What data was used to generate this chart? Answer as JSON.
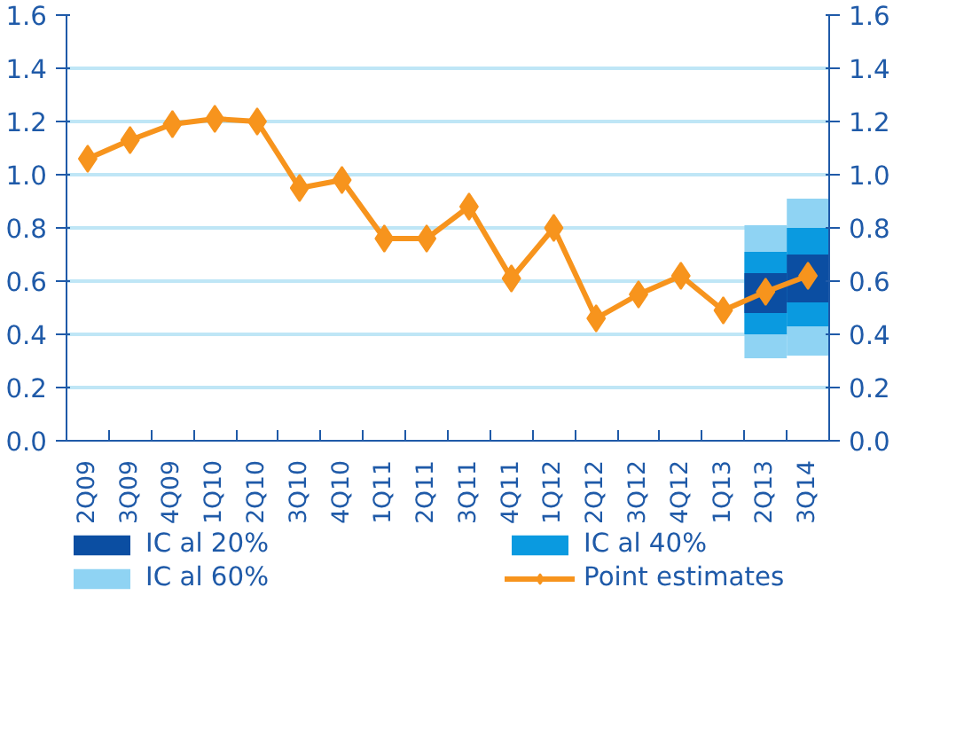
{
  "chart_data": {
    "type": "bar",
    "categories": [
      "2Q09",
      "3Q09",
      "4Q09",
      "1Q10",
      "2Q10",
      "3Q10",
      "4Q10",
      "1Q11",
      "2Q11",
      "3Q11",
      "4Q11",
      "1Q12",
      "2Q12",
      "3Q12",
      "4Q12",
      "1Q13",
      "2Q13",
      "3Q14"
    ],
    "series": [
      {
        "name": "IC al 20%",
        "color": "#0b4ea2",
        "base": [
          null,
          null,
          null,
          null,
          null,
          null,
          null,
          null,
          null,
          null,
          null,
          null,
          null,
          null,
          null,
          null,
          0.48,
          0.52
        ],
        "values": [
          null,
          null,
          null,
          null,
          null,
          null,
          null,
          null,
          null,
          null,
          null,
          null,
          null,
          null,
          null,
          null,
          0.15,
          0.18
        ]
      },
      {
        "name": "IC al 40%",
        "color": "#0a9ae0",
        "base": [
          null,
          null,
          null,
          null,
          null,
          null,
          null,
          null,
          null,
          null,
          null,
          null,
          null,
          null,
          null,
          null,
          0.4,
          0.43
        ],
        "values": [
          null,
          null,
          null,
          null,
          null,
          null,
          null,
          null,
          null,
          null,
          null,
          null,
          null,
          null,
          null,
          null,
          0.31,
          0.37
        ]
      },
      {
        "name": "IC al 60%",
        "color": "#8fd3f3",
        "base": [
          null,
          null,
          null,
          null,
          null,
          null,
          null,
          null,
          null,
          null,
          null,
          null,
          null,
          null,
          null,
          null,
          0.31,
          0.32
        ],
        "values": [
          null,
          null,
          null,
          null,
          null,
          null,
          null,
          null,
          null,
          null,
          null,
          null,
          null,
          null,
          null,
          null,
          0.5,
          0.59
        ]
      },
      {
        "name": "Point estimates",
        "type": "line",
        "color": "#f7941d",
        "marker": "diamond",
        "values": [
          1.06,
          1.13,
          1.19,
          1.21,
          1.2,
          0.95,
          0.98,
          0.76,
          0.76,
          0.88,
          0.61,
          0.8,
          0.46,
          0.55,
          0.62,
          0.49,
          0.56,
          0.62
        ]
      }
    ],
    "ylim": [
      0,
      1.6
    ],
    "yticks": [
      {
        "value": 0,
        "label": "0.0"
      },
      {
        "value": 0.2,
        "label": "0.2"
      },
      {
        "value": 0.4,
        "label": "0.4"
      },
      {
        "value": 0.6,
        "label": "0.6"
      },
      {
        "value": 0.8,
        "label": "0.8"
      },
      {
        "value": 1.0,
        "label": "1.0"
      },
      {
        "value": 1.2,
        "label": "1.2"
      },
      {
        "value": 1.4,
        "label": "1.4"
      },
      {
        "value": 1.6,
        "label": "1.6"
      }
    ],
    "y2lim": [
      0,
      1.6
    ],
    "y2ticks": [
      {
        "value": 0,
        "label": "0.0"
      },
      {
        "value": 0.2,
        "label": "0.2"
      },
      {
        "value": 0.4,
        "label": "0.4"
      },
      {
        "value": 0.6,
        "label": "0.6"
      },
      {
        "value": 0.8,
        "label": "0.8"
      },
      {
        "value": 1.0,
        "label": "1.0"
      },
      {
        "value": 1.2,
        "label": "1.2"
      },
      {
        "value": 1.4,
        "label": "1.4"
      },
      {
        "value": 1.6,
        "label": "1.6"
      }
    ],
    "grid": "y",
    "legend": "bottom"
  }
}
